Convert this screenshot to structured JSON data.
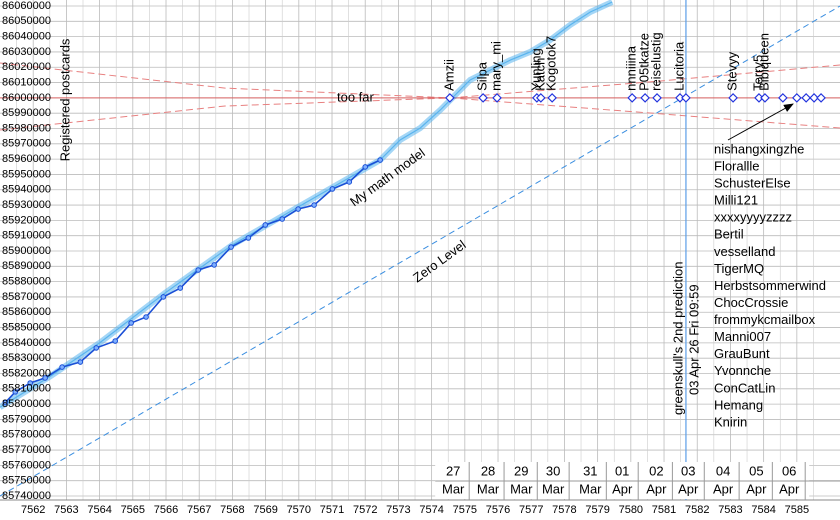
{
  "chart_data": {
    "type": "line",
    "ylabel": "Registered postcards",
    "xlim": [
      7561,
      7586.3
    ],
    "ylim": [
      85740000,
      86060000
    ],
    "xticks": [
      7562,
      7563,
      7564,
      7565,
      7566,
      7567,
      7568,
      7569,
      7570,
      7571,
      7572,
      7573,
      7574,
      7575,
      7576,
      7577,
      7578,
      7579,
      7580,
      7581,
      7582,
      7583,
      7584,
      7585
    ],
    "yticks": [
      85740000,
      85750000,
      85760000,
      85770000,
      85780000,
      85790000,
      85800000,
      85810000,
      85820000,
      85830000,
      85840000,
      85850000,
      85860000,
      85870000,
      85880000,
      85890000,
      85900000,
      85910000,
      85920000,
      85930000,
      85940000,
      85950000,
      85960000,
      85970000,
      85980000,
      85990000,
      86000000,
      86010000,
      86020000,
      86030000,
      86040000,
      86050000,
      86060000
    ],
    "grid": true,
    "measured": {
      "color": "#1a4fd6",
      "x": [
        7561.16,
        7561.46,
        7561.91,
        7562.36,
        7562.87,
        7563.42,
        7563.9,
        7564.47,
        7564.95,
        7565.4,
        7565.92,
        7566.43,
        7566.97,
        7567.45,
        7567.96,
        7568.48,
        7568.99,
        7569.5,
        7569.98,
        7570.46,
        7571.01,
        7571.52,
        7572.0,
        7572.45
      ],
      "values": [
        85801000,
        85808000,
        85813800,
        85817100,
        85824200,
        85827500,
        85836700,
        85841200,
        85853000,
        85856900,
        85870000,
        85875800,
        85887600,
        85890900,
        85902600,
        85908500,
        85917000,
        85920900,
        85927400,
        85930000,
        85940500,
        85945100,
        85954900,
        85959400
      ]
    },
    "model": {
      "name": "My math model",
      "color": "#5ab4ee",
      "x": [
        7561,
        7562.5,
        7564,
        7566,
        7568,
        7570,
        7572.45,
        7573.05,
        7573.66,
        7574.26,
        7574.71,
        7575.16,
        7575.77,
        7576.37,
        7576.97,
        7577.57,
        7578.17,
        7578.78,
        7579.44
      ],
      "values": [
        85798000,
        85818000,
        85840000,
        85873000,
        85904000,
        85929000,
        85959400,
        85972500,
        85980300,
        85992100,
        86001900,
        86011700,
        86018200,
        86024700,
        86030000,
        86037800,
        86047600,
        86056100,
        86062600
      ]
    },
    "zero_level": {
      "name": "Zero Level",
      "color": "#3a8ee0",
      "x": [
        7561,
        7586.3
      ],
      "values": [
        85740000,
        86060000
      ]
    },
    "target": {
      "name": "too far",
      "value": 86000000,
      "color": "#d86060"
    },
    "bounds": [
      {
        "color": "#e88080",
        "x": [
          7561,
          7567.78,
          7574.56,
          7580.58,
          7586.3
        ],
        "values": [
          86022800,
          86006400,
          86000000,
          85990100,
          85980300
        ]
      },
      {
        "color": "#e88080",
        "x": [
          7561,
          7567.78,
          7574.56,
          7580.58,
          7586.3
        ],
        "values": [
          85979000,
          85994700,
          86000000,
          86010400,
          86021500
        ]
      }
    ],
    "prediction": {
      "x": 7581.66,
      "label": "greenskull's 2nd prediction",
      "date": "03 Apr 26 Fri 09:59",
      "color": "#5b9ee8"
    },
    "markers": [
      {
        "name": "Amzii",
        "x": 7574.55,
        "value": 86000000
      },
      {
        "name": "Silpa",
        "x": 7575.55,
        "value": 86000000
      },
      {
        "name": "mary_mi",
        "x": 7575.97,
        "value": 86000000
      },
      {
        "name": "Yunling",
        "x": 7577.17,
        "value": 86000000
      },
      {
        "name": "Katch",
        "x": 7577.29,
        "value": 86000000
      },
      {
        "name": "Kogotok7",
        "x": 7577.63,
        "value": 86000000
      },
      {
        "name": "nnniiina",
        "x": 7580.04,
        "value": 86000000
      },
      {
        "name": "P05tkatze",
        "x": 7580.43,
        "value": 86000000
      },
      {
        "name": "reiselustig",
        "x": 7580.79,
        "value": 86000000
      },
      {
        "name": "Lucitoria",
        "x": 7581.48,
        "value": 86000000
      },
      {
        "x": 7581.66,
        "value": 86000000
      },
      {
        "name": "Stevyy",
        "x": 7583.08,
        "value": 86000000
      },
      {
        "name": "Terry5",
        "x": 7583.86,
        "value": 86000000
      },
      {
        "name": "Bibiqueen",
        "x": 7584.04,
        "value": 86000000
      },
      {
        "x": 7584.58,
        "value": 86000000
      },
      {
        "x": 7585.0,
        "value": 86000000
      },
      {
        "x": 7585.28,
        "value": 86000000
      },
      {
        "x": 7585.52,
        "value": 86000000
      },
      {
        "x": 7585.73,
        "value": 86000000
      }
    ],
    "waiting_list": [
      "nishangxingzhe",
      "Florallle",
      "SchusterElse",
      "Milli121",
      "xxxxyyyyzzzz",
      "Bertil",
      "vesselland",
      "TigerMQ",
      "Herbstsommerwind",
      "ChocCrossie",
      "frommykcmailbox",
      "Manni007",
      "GrauBunt",
      "Yvonnche",
      "ConCatLin",
      "Hemang",
      "Knirin"
    ],
    "dates": [
      {
        "day": "27",
        "month": "Mar",
        "x": 7574.65
      },
      {
        "day": "28",
        "month": "Mar",
        "x": 7575.7
      },
      {
        "day": "29",
        "month": "Mar",
        "x": 7576.7
      },
      {
        "day": "30",
        "month": "Mar",
        "x": 7577.66
      },
      {
        "day": "31",
        "month": "Mar",
        "x": 7578.78
      },
      {
        "day": "01",
        "month": "Apr",
        "x": 7579.74
      },
      {
        "day": "02",
        "month": "Apr",
        "x": 7580.77
      },
      {
        "day": "03",
        "month": "Apr",
        "x": 7581.73
      },
      {
        "day": "04",
        "month": "Apr",
        "x": 7582.78
      },
      {
        "day": "05",
        "month": "Apr",
        "x": 7583.78
      },
      {
        "day": "06",
        "month": "Apr",
        "x": 7584.77
      }
    ]
  }
}
